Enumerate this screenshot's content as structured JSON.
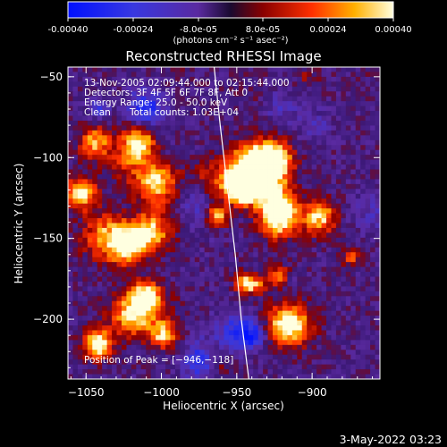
{
  "colorbar": {
    "ticks": [
      "-0.00040",
      "-0.00024",
      "-8.0e-05",
      "8.0e-05",
      "0.00024",
      "0.00040"
    ],
    "units": "(photons cm⁻² s⁻¹ asec⁻²)"
  },
  "chart_data": {
    "type": "heatmap",
    "title": "Reconstructed RHESSI Image",
    "xlabel": "Heliocentric X (arcsec)",
    "ylabel": "Heliocentric Y (arcsec)",
    "xlim": [
      -1062,
      -855
    ],
    "ylim": [
      -237,
      -44
    ],
    "x_ticks": [
      -1050,
      -1000,
      -950,
      -900
    ],
    "y_ticks": [
      -200,
      -150,
      -100,
      -50
    ],
    "x_tick_labels": [
      "−1050",
      "−1000",
      "−950",
      "−900"
    ],
    "y_tick_labels": [
      "−200",
      "−150",
      "−100",
      "−50"
    ],
    "color_range": [
      -0.0004,
      0.0004
    ],
    "limb_curve": [
      [
        -965,
        -44
      ],
      [
        -961,
        -80
      ],
      [
        -956,
        -120
      ],
      [
        -951,
        -160
      ],
      [
        -947,
        -200
      ],
      [
        -942,
        -237
      ]
    ],
    "peak": [
      -946,
      -118
    ]
  },
  "annotations": {
    "time_range": "13-Nov-2005 02:09:44.000 to 02:15:44.000",
    "detectors": "Detectors: 3F 4F 5F 6F 7F 8F, Att 0",
    "energy": "Energy Range: 25.0 - 50.0 keV",
    "clean": "Clean",
    "counts": "Total counts: 1.03E+04",
    "peak_text": "Position of Peak = [−946,−118]"
  },
  "footer": {
    "date": "3-May-2022 03:23"
  }
}
